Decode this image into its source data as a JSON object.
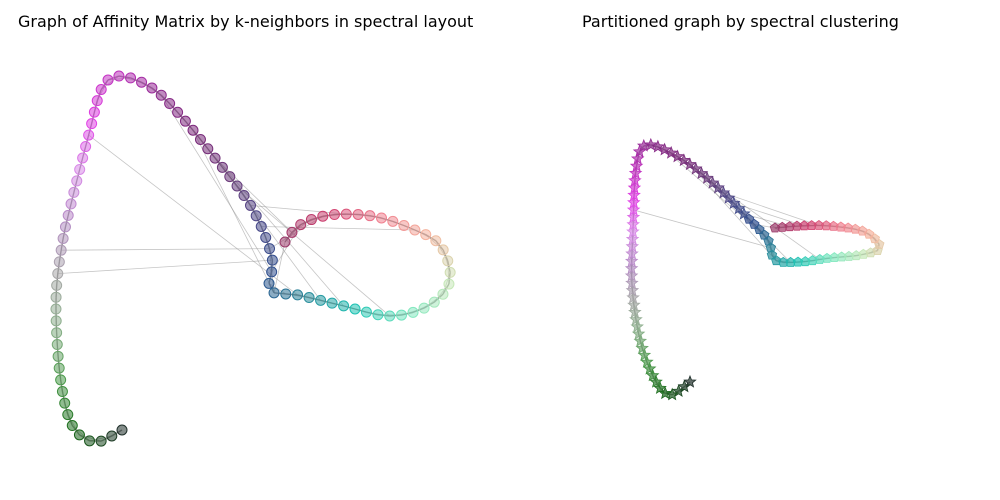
{
  "panels": {
    "left": {
      "title": "Graph of Affinity Matrix by k-neighbors in spectral layout"
    },
    "right": {
      "title": "Partitioned graph by spectral clustering"
    }
  },
  "legend": {
    "present": false
  },
  "axes": {
    "visible": false
  },
  "colors": {
    "edge": "#808080",
    "gradient_stops": [
      "#1f2f2a",
      "#1a6b1a",
      "#4a9a4a",
      "#8ab08a",
      "#a9a9a9",
      "#b48bc4",
      "#d88ce8",
      "#e23ee6",
      "#bf32be",
      "#8a2a8a",
      "#7a2a7a",
      "#6a3a7a",
      "#4a4a8a",
      "#2e4f8e",
      "#2a8a9a",
      "#1fc4b4",
      "#7ee8c0",
      "#c8e8b8",
      "#f5b8a0",
      "#f08090",
      "#d04070",
      "#9a3a6a"
    ]
  },
  "marker_types": [
    "circle",
    "star",
    "pentagon"
  ],
  "description": ""
}
